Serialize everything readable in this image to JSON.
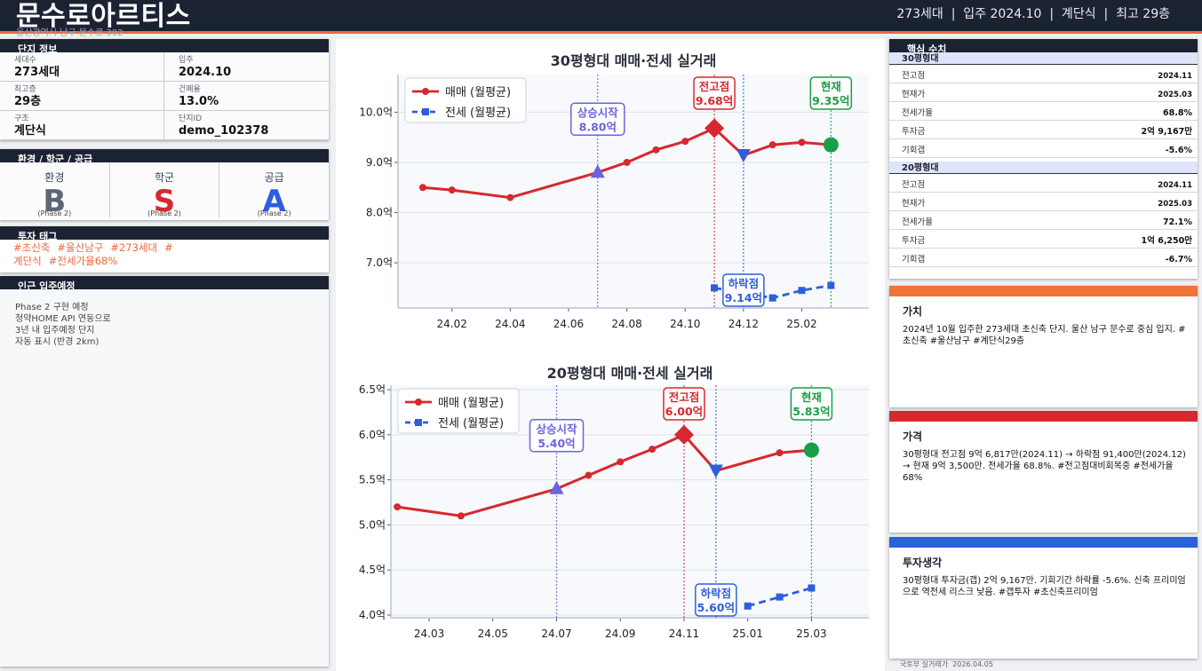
{
  "header": {
    "title": "문수로아르티스",
    "address": "울산광역시 남구 문수로 302",
    "meta": "273세대  |  입주 2024.10  |  계단식  |  최고 29층"
  },
  "complex_info": {
    "heading": "단지 정보",
    "fields": [
      {
        "label": "세대수",
        "value": "273세대"
      },
      {
        "label": "입주",
        "value": "2024.10"
      },
      {
        "label": "최고층",
        "value": "29층"
      },
      {
        "label": "건폐율",
        "value": "13.0%"
      },
      {
        "label": "구조",
        "value": "계단식"
      },
      {
        "label": "단지ID",
        "value": "demo_102378"
      }
    ]
  },
  "grades": {
    "heading": "환경 / 학군 / 공급",
    "items": [
      {
        "label": "환경",
        "value": "B",
        "note": "(Phase 2)",
        "color": "#5f6673"
      },
      {
        "label": "학군",
        "value": "S",
        "note": "(Phase 2)",
        "color": "#d7282f"
      },
      {
        "label": "공급",
        "value": "A",
        "note": "(Phase 2)",
        "color": "#2d5fdc"
      }
    ]
  },
  "tags": {
    "heading": "투자 태그",
    "items": [
      "#초신축",
      "#울산남구",
      "#273세대",
      "#",
      "계단식",
      "#전세가율68%"
    ]
  },
  "nearby": {
    "heading": "인근 입주예정",
    "text": "Phase 2 구현 예정\n청약HOME API 연동으로\n3년 내 입주예정 단지\n자동 표시 (반경 2km)"
  },
  "chart_data": [
    {
      "type": "line",
      "title": "30평형대  매매·전세 실거래",
      "x_ticks": [
        "24.02",
        "24.04",
        "24.06",
        "24.08",
        "24.10",
        "24.12",
        "25.02"
      ],
      "y_ticks": [
        "7.0억",
        "8.0억",
        "9.0억",
        "10.0억"
      ],
      "ylim": [
        6.1,
        10.75
      ],
      "series": [
        {
          "name": "매매 (월평균)",
          "color": "#d7282f",
          "points": [
            [
              "2024-01",
              8.5
            ],
            [
              "2024-02",
              8.45
            ],
            [
              "2024-04",
              8.3
            ],
            [
              "2024-07",
              8.8
            ],
            [
              "2024-08",
              9.0
            ],
            [
              "2024-09",
              9.25
            ],
            [
              "2024-10",
              9.42
            ],
            [
              "2024-11",
              9.68
            ],
            [
              "2024-12",
              9.14
            ],
            [
              "2025-01",
              9.35
            ],
            [
              "2025-02",
              9.4
            ],
            [
              "2025-03",
              9.35
            ]
          ]
        },
        {
          "name": "전세 (월평균)",
          "color": "#2d5fdc",
          "points": [
            [
              "2024-11",
              6.5
            ],
            [
              "2024-12",
              6.4
            ],
            [
              "2025-01",
              6.3
            ],
            [
              "2025-02",
              6.45
            ],
            [
              "2025-03",
              6.55
            ]
          ]
        }
      ],
      "annotations": [
        {
          "label": "상승시작",
          "value": "8.80억",
          "x": "2024-07",
          "y": 8.8,
          "marker": "triangle-up",
          "color": "#6b63e0"
        },
        {
          "label": "전고점",
          "value": "9.68억",
          "x": "2024-11",
          "y": 9.68,
          "marker": "diamond",
          "color": "#d7282f"
        },
        {
          "label": "하락점",
          "value": "9.14억",
          "x": "2024-12",
          "y": 9.14,
          "marker": "triangle-down",
          "color": "#2d5fdc"
        },
        {
          "label": "현재",
          "value": "9.35억",
          "x": "2025-03",
          "y": 9.35,
          "marker": "circle",
          "color": "#1a9e47"
        }
      ]
    },
    {
      "type": "line",
      "title": "20평형대  매매·전세 실거래",
      "x_ticks": [
        "24.03",
        "24.05",
        "24.07",
        "24.09",
        "24.11",
        "25.01",
        "25.03"
      ],
      "y_ticks": [
        "4.0억",
        "4.5억",
        "5.0억",
        "5.5억",
        "6.0억",
        "6.5억"
      ],
      "ylim": [
        3.97,
        6.55
      ],
      "series": [
        {
          "name": "매매 (월평균)",
          "color": "#d7282f",
          "points": [
            [
              "2024-02",
              5.2
            ],
            [
              "2024-04",
              5.1
            ],
            [
              "2024-07",
              5.4
            ],
            [
              "2024-08",
              5.55
            ],
            [
              "2024-09",
              5.7
            ],
            [
              "2024-10",
              5.84
            ],
            [
              "2024-11",
              6.0
            ],
            [
              "2024-12",
              5.6
            ],
            [
              "2025-02",
              5.8
            ],
            [
              "2025-03",
              5.83
            ]
          ]
        },
        {
          "name": "전세 (월평균)",
          "color": "#2d5fdc",
          "points": [
            [
              "2025-01",
              4.1
            ],
            [
              "2025-02",
              4.2
            ],
            [
              "2025-03",
              4.3
            ]
          ]
        }
      ],
      "annotations": [
        {
          "label": "상승시작",
          "value": "5.40억",
          "x": "2024-07",
          "y": 5.4,
          "marker": "triangle-up",
          "color": "#6b63e0"
        },
        {
          "label": "전고점",
          "value": "6.00억",
          "x": "2024-11",
          "y": 6.0,
          "marker": "diamond",
          "color": "#d7282f"
        },
        {
          "label": "하락점",
          "value": "5.60억",
          "x": "2024-12",
          "y": 5.6,
          "marker": "triangle-down",
          "color": "#2d5fdc"
        },
        {
          "label": "현재",
          "value": "5.83억",
          "x": "2025-03",
          "y": 5.83,
          "marker": "circle",
          "color": "#1a9e47"
        }
      ]
    }
  ],
  "key_metrics": {
    "heading": "핵심 수치",
    "groups": [
      {
        "title": "30평형대",
        "rows": [
          {
            "k": "전고점",
            "v": "2024.11"
          },
          {
            "k": "현재가",
            "v": "2025.03"
          },
          {
            "k": "전세가율",
            "v": "68.8%"
          },
          {
            "k": "투자금",
            "v": "2억 9,167만"
          },
          {
            "k": "기회갭",
            "v": "-5.6%"
          }
        ]
      },
      {
        "title": "20평형대",
        "rows": [
          {
            "k": "전고점",
            "v": "2024.11"
          },
          {
            "k": "현재가",
            "v": "2025.03"
          },
          {
            "k": "전세가율",
            "v": "72.1%"
          },
          {
            "k": "투자금",
            "v": "1억 6,250만"
          },
          {
            "k": "기회갭",
            "v": "-6.7%"
          }
        ]
      }
    ]
  },
  "cards": [
    {
      "title": "가치",
      "color": "#f07338",
      "body": "2024년 10월 입주한 273세대 초신축 단지. 울산 남구 문수로 중심 입지. #초신축 #울산남구 #계단식29층"
    },
    {
      "title": "가격",
      "color": "#d7282f",
      "body": "30평형대 전고점 9억 6,817만(2024.11) → 하락점 91,400만(2024.12) → 현재 9억 3,500만. 전세가율 68.8%. #전고점대비회복중 #전세가율68%"
    },
    {
      "title": "투자생각",
      "color": "#2a62dc",
      "body": "30평형대 투자금(갭) 2억 9,167만. 기회기간 하락률 -5.6%. 신축 프리미엄으로 역전세 리스크 낮음. #갭투자 #초신축프리미엄"
    }
  ],
  "footer": "국토부 실거래가  2026.04.05"
}
